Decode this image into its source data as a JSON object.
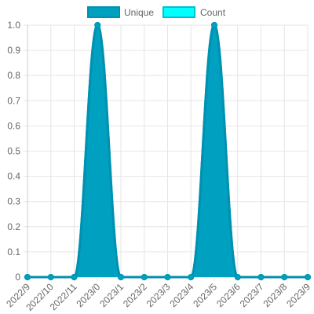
{
  "chart_data": {
    "type": "area",
    "categories": [
      "2022/9",
      "2022/10",
      "2022/11",
      "2023/0",
      "2023/1",
      "2023/2",
      "2023/3",
      "2023/4",
      "2023/5",
      "2023/6",
      "2023/7",
      "2023/8",
      "2023/9"
    ],
    "series": [
      {
        "name": "Unique",
        "values": [
          0,
          0,
          0,
          1,
          0,
          0,
          0,
          0,
          1,
          0,
          0,
          0,
          0
        ],
        "color": "#00a0c0",
        "stroke": "#0090b0"
      },
      {
        "name": "Count",
        "values": [
          0,
          0,
          0,
          1,
          0,
          0,
          0,
          0,
          1,
          0,
          0,
          0,
          0
        ],
        "color": "#00ffff",
        "stroke": "#00c0d0"
      }
    ],
    "y_ticks": [
      "0",
      "0.1",
      "0.2",
      "0.3",
      "0.4",
      "0.5",
      "0.6",
      "0.7",
      "0.8",
      "0.9",
      "1.0"
    ],
    "ylim": [
      0,
      1
    ],
    "grid": true,
    "legend_position": "top-center"
  }
}
